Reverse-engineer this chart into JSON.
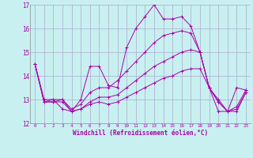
{
  "xlabel": "Windchill (Refroidissement éolien,°C)",
  "bg_color": "#c8f0f0",
  "line_color": "#aa00aa",
  "grid_color": "#aaaacc",
  "xlim": [
    -0.5,
    23.5
  ],
  "ylim": [
    12,
    17
  ],
  "yticks": [
    12,
    13,
    14,
    15,
    16,
    17
  ],
  "xticks": [
    0,
    1,
    2,
    3,
    4,
    5,
    6,
    7,
    8,
    9,
    10,
    11,
    12,
    13,
    14,
    15,
    16,
    17,
    18,
    19,
    20,
    21,
    22,
    23
  ],
  "lines": [
    [
      14.5,
      12.9,
      13.0,
      12.6,
      12.5,
      13.0,
      14.4,
      14.4,
      13.6,
      13.5,
      15.2,
      16.0,
      16.5,
      17.0,
      16.4,
      16.4,
      16.5,
      16.1,
      15.0,
      13.5,
      12.5,
      12.5,
      13.5,
      13.4
    ],
    [
      14.5,
      13.0,
      13.0,
      13.0,
      12.6,
      12.8,
      13.3,
      13.5,
      13.5,
      13.8,
      14.2,
      14.6,
      15.0,
      15.4,
      15.7,
      15.8,
      15.9,
      15.8,
      15.0,
      13.5,
      13.0,
      12.5,
      12.7,
      13.4
    ],
    [
      14.5,
      12.9,
      12.9,
      13.0,
      12.5,
      12.6,
      12.9,
      13.1,
      13.1,
      13.2,
      13.5,
      13.8,
      14.1,
      14.4,
      14.6,
      14.8,
      15.0,
      15.1,
      15.0,
      13.5,
      12.9,
      12.5,
      12.6,
      13.3
    ],
    [
      14.5,
      12.9,
      12.9,
      12.9,
      12.5,
      12.6,
      12.8,
      12.9,
      12.8,
      12.9,
      13.1,
      13.3,
      13.5,
      13.7,
      13.9,
      14.0,
      14.2,
      14.3,
      14.3,
      13.5,
      12.9,
      12.5,
      12.5,
      13.3
    ]
  ]
}
